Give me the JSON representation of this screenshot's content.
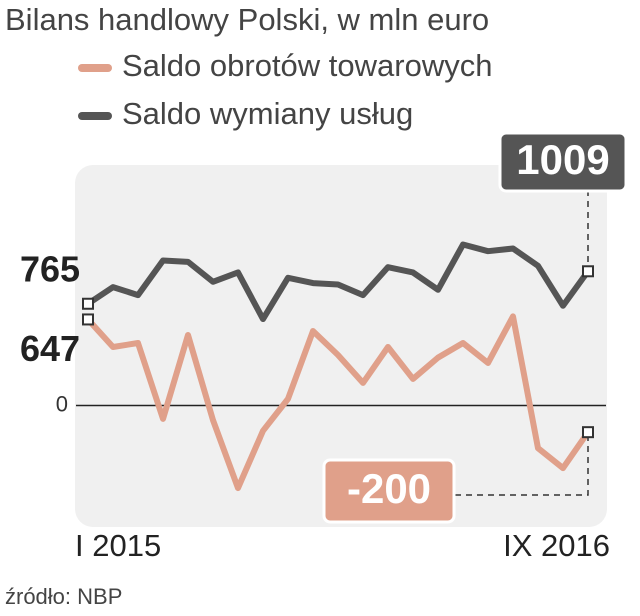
{
  "chart_data": {
    "type": "line",
    "title": "Bilans handlowy Polski, w mln euro",
    "source": "źródło: NBP",
    "categories": [
      "I 2015",
      null,
      null,
      null,
      null,
      null,
      null,
      null,
      null,
      null,
      null,
      null,
      null,
      null,
      null,
      null,
      null,
      null,
      null,
      null,
      "IX 2016"
    ],
    "series": [
      {
        "name": "Saldo obrotów towarowych",
        "color": "#e0a08a",
        "values": [
          647,
          440,
          470,
          -100,
          530,
          -110,
          -620,
          -190,
          50,
          560,
          380,
          170,
          440,
          200,
          360,
          470,
          320,
          670,
          -320,
          -470,
          -200
        ]
      },
      {
        "name": "Saldo wymiany usług",
        "color": "#555555",
        "values": [
          765,
          890,
          830,
          1090,
          1080,
          930,
          1000,
          650,
          960,
          920,
          910,
          830,
          1040,
          1000,
          870,
          1210,
          1160,
          1180,
          1050,
          750,
          1009
        ]
      }
    ],
    "ylim": [
      -860,
      1770
    ],
    "yticks": [
      0
    ],
    "legend": "top-left"
  }
}
